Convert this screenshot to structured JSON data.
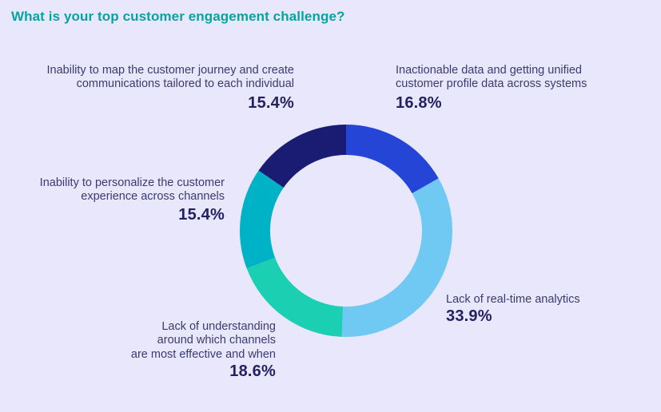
{
  "header": {
    "title": "What is your top customer engagement challenge?",
    "title_color": "#07a3a3"
  },
  "page": {
    "background_color": "#e9e7fb",
    "label_text_color": "#3b3a74",
    "value_text_color": "#242163"
  },
  "chart_data": {
    "type": "pie",
    "subtype": "donut",
    "title": "What is your top customer engagement challenge?",
    "unit": "%",
    "start_angle_deg": 0,
    "direction": "clockwise",
    "inner_radius_ratio": 0.71,
    "legend_position": "none",
    "segments": [
      {
        "label": "Inactionable data and getting unified customer profile data across systems",
        "value": 16.8,
        "display_label": "Inactionable data and getting unified\ncustomer profile data across systems",
        "display_value": "16.8%",
        "color": "#2545d6"
      },
      {
        "label": "Lack of real-time analytics",
        "value": 33.9,
        "display_label": "Lack of real-time analytics",
        "display_value": "33.9%",
        "color": "#70c9f2"
      },
      {
        "label": "Lack of understanding around which channels are most effective and when",
        "value": 18.6,
        "display_label": "Lack of understanding\naround which channels\nare most effective and when",
        "display_value": "18.6%",
        "color": "#1acfb2"
      },
      {
        "label": "Inability to personalize the customer experience across channels",
        "value": 15.4,
        "display_label": "Inability to personalize the customer\nexperience across channels",
        "display_value": "15.4%",
        "color": "#00b2c6"
      },
      {
        "label": "Inability to map the customer journey and create communications tailored to each individual",
        "value": 15.4,
        "display_label": "Inability to map the customer journey and create\ncommunications tailored to each individual",
        "display_value": "15.4%",
        "color": "#1a1b72"
      }
    ]
  }
}
